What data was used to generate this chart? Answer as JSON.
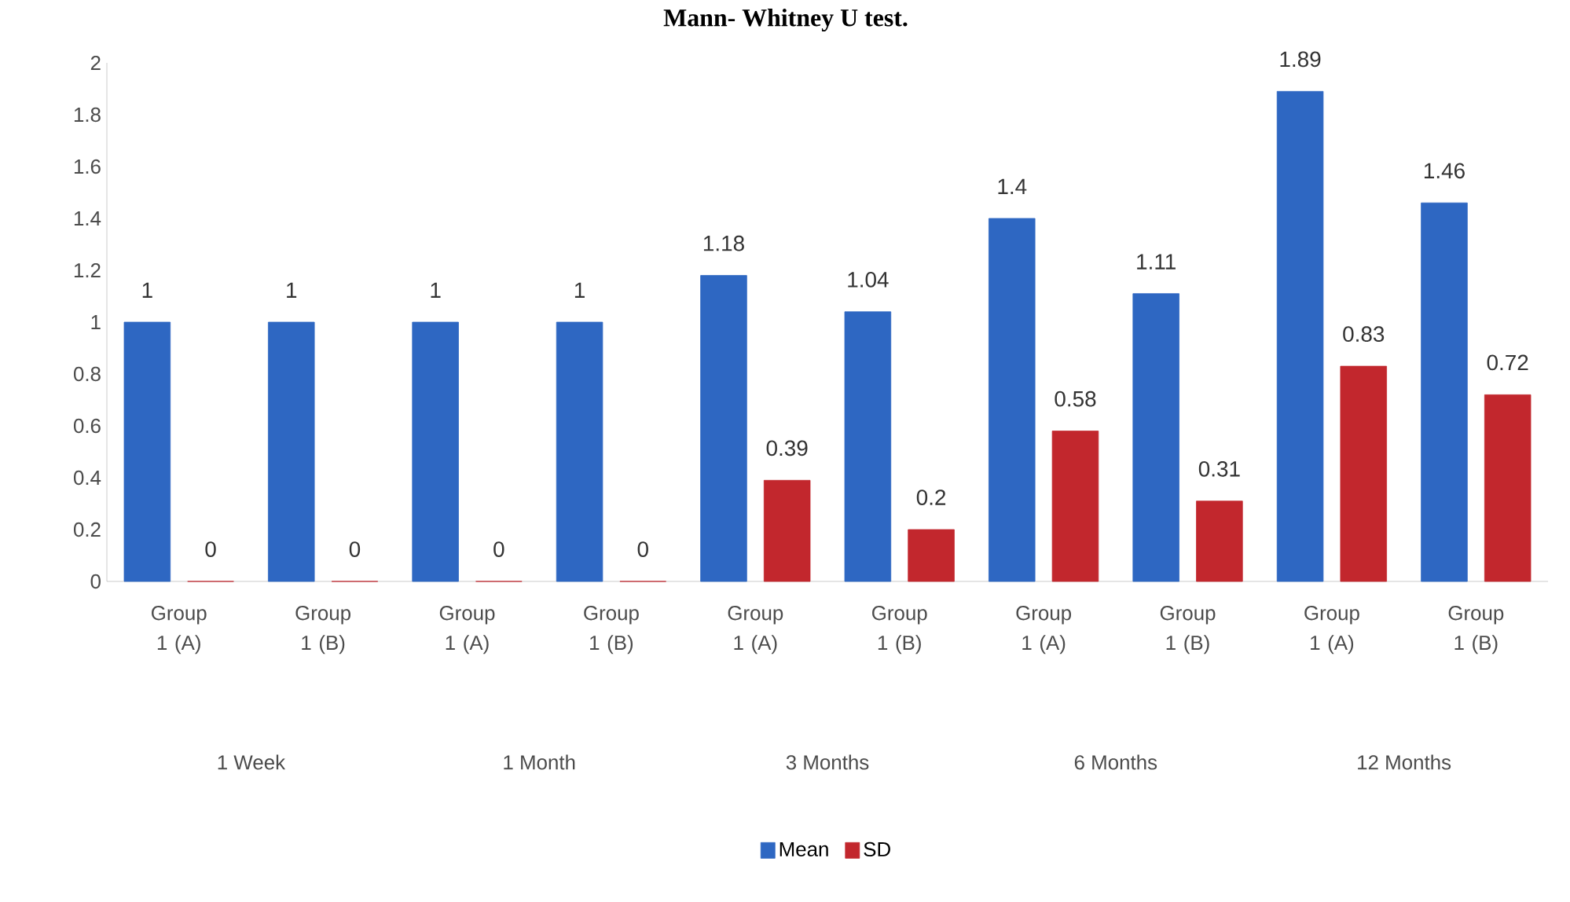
{
  "chart_data": {
    "type": "bar",
    "title": "Mann- Whitney U test.",
    "categories": [
      "Group 1 (A)",
      "Group 1 (B)",
      "Group 1 (A)",
      "Group 1 (B)",
      "Group 1 (A)",
      "Group 1 (B)",
      "Group 1 (A)",
      "Group 1 (B)",
      "Group 1 (A)",
      "Group 1 (B)"
    ],
    "annotations": [
      "1 Week",
      "1 Month",
      "3 Months",
      "6 Months",
      "12 Months"
    ],
    "series": [
      {
        "name": "Mean",
        "color": "#2e67c2",
        "values": [
          1,
          1,
          1,
          1,
          1.18,
          1.04,
          1.4,
          1.11,
          1.89,
          1.46
        ]
      },
      {
        "name": "SD",
        "color": "#c2272d",
        "values": [
          0,
          0,
          0,
          0,
          0.39,
          0.2,
          0.58,
          0.31,
          0.83,
          0.72
        ]
      }
    ],
    "ylim": [
      0,
      2
    ],
    "yticks": [
      0,
      0.2,
      0.4,
      0.6,
      0.8,
      1,
      1.2,
      1.4,
      1.6,
      1.8,
      2
    ],
    "data_labels": true,
    "legend": "bottom",
    "grid": false
  }
}
